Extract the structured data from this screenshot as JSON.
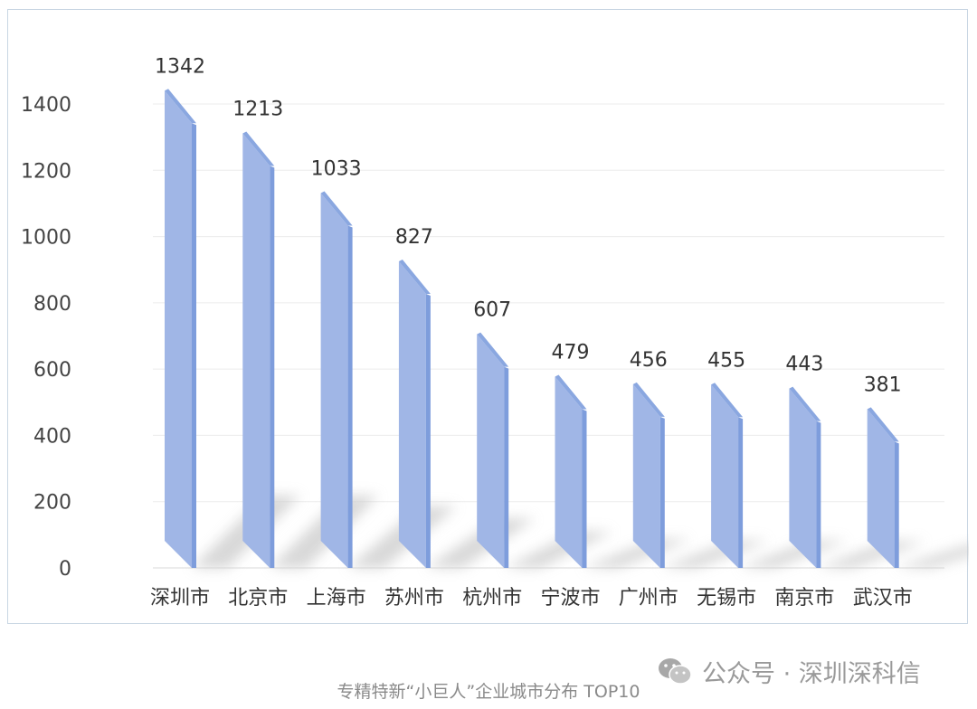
{
  "chart_data": {
    "type": "bar",
    "categories": [
      "深圳市",
      "北京市",
      "上海市",
      "苏州市",
      "杭州市",
      "宁波市",
      "广州市",
      "无锡市",
      "南京市",
      "武汉市"
    ],
    "values": [
      1342,
      1213,
      1033,
      827,
      607,
      479,
      456,
      455,
      443,
      381
    ],
    "ylim": [
      0,
      1400
    ],
    "yticks": [
      0,
      200,
      400,
      600,
      800,
      1000,
      1200,
      1400
    ],
    "grid": true,
    "legend": "none",
    "bar_color": "#a0b6e6",
    "bar_side_color": "#7e9ddc",
    "bar_top_color": "#8aa7e0",
    "shadow_color": "#cfcfcf"
  },
  "watermark": {
    "icon": "wechat-icon",
    "text": "公众号 · 深圳深科信"
  },
  "caption": "专精特新“小巨人”企业城市分布 TOP10"
}
